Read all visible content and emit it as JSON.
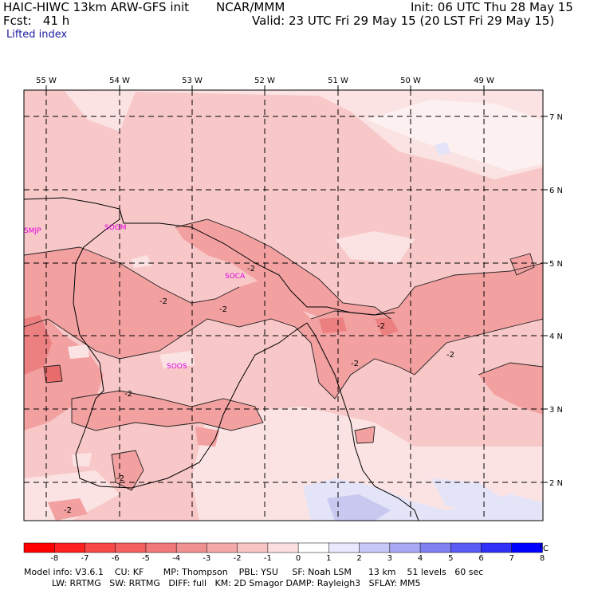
{
  "header": {
    "model_title": "HAIC-HIWC 13km ARW-GFS init",
    "org": "NCAR/MMM",
    "init_text": "Init: 06 UTC Thu 28 May 15",
    "fcst_text": "Fcst:   41 h",
    "valid_text": "Valid: 23 UTC Fri 29 May 15 (20 LST Fri 29 May 15)",
    "field_name": "Lifted index"
  },
  "map": {
    "lon_labels": [
      "55 W",
      "54 W",
      "53 W",
      "52 W",
      "51 W",
      "50 W",
      "49 W"
    ],
    "lat_labels": [
      "7 N",
      "6 N",
      "5 N",
      "4 N",
      "3 N",
      "2 N"
    ],
    "stations": [
      "SMJP",
      "SOGM",
      "SOCA",
      "SOOS"
    ],
    "contour_labels": [
      "-2",
      "-2",
      "-2",
      "-2",
      "-2",
      "-2",
      "-2",
      "-2",
      "-2"
    ],
    "colors": {
      "very_light_pink": "#fbe3e3",
      "light_pink": "#f8c8c8",
      "medium_pink": "#f2a0a0",
      "dark_pink": "#ec8080",
      "light_blue": "#d8d8f5",
      "medium_blue": "#c2c2ee",
      "station_magenta": "#e000e0"
    }
  },
  "colorbar": {
    "ticks": [
      "-8",
      "-7",
      "-6",
      "-5",
      "-4",
      "-3",
      "-2",
      "-1",
      "0",
      "1",
      "2",
      "3",
      "4",
      "5",
      "6",
      "7",
      "8"
    ],
    "unit": "°C",
    "colors": [
      "#ff0000",
      "#ff2020",
      "#f84848",
      "#f46060",
      "#f07878",
      "#f09090",
      "#f4a8a8",
      "#f8c4c4",
      "#fce0e0",
      "#ffffff",
      "#e8e8ff",
      "#c8c8f8",
      "#a8a8f4",
      "#8080f0",
      "#5a5af4",
      "#3030f8",
      "#0000ff"
    ]
  },
  "footer": {
    "line1": "Model info: V3.6.1    CU: KF       MP: Thompson    PBL: YSU     SF: Noah LSM      13 km    51 levels   60 sec",
    "line2": "          LW: RRTMG   SW: RRTMG   DIFF: full   KM: 2D Smagor DAMP: Rayleigh3   SFLAY: MM5"
  }
}
